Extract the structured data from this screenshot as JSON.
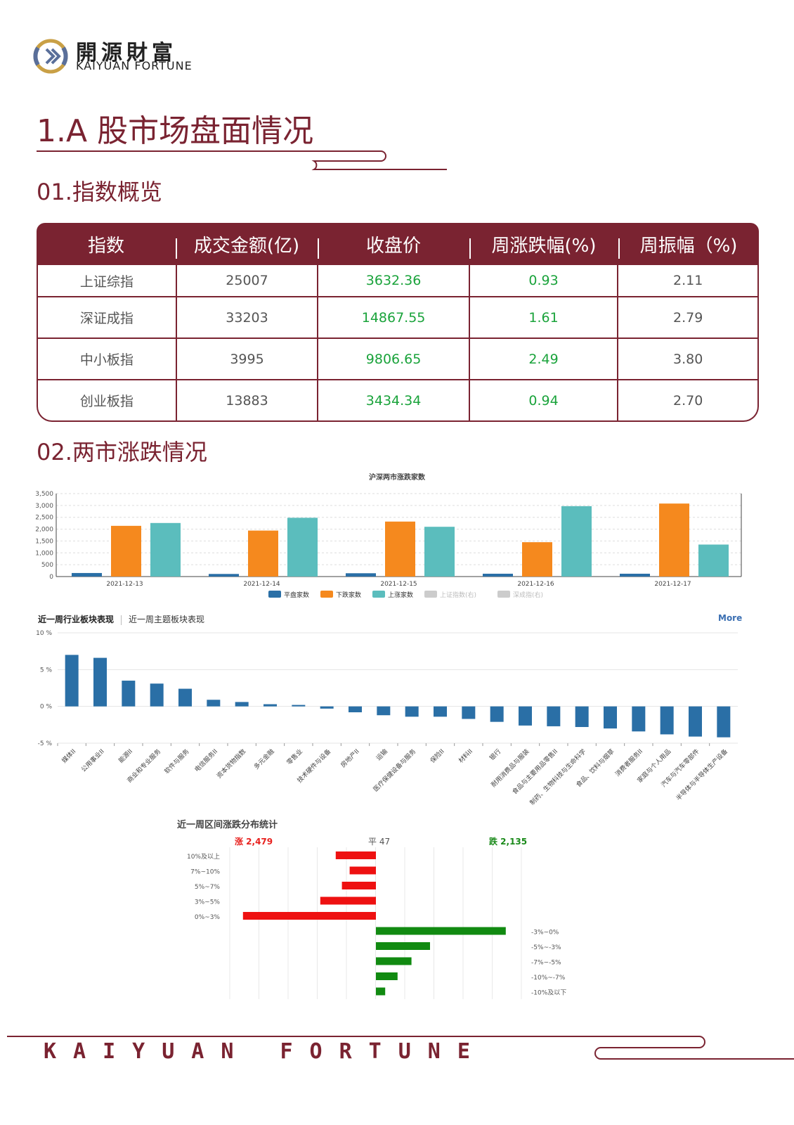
{
  "brand": {
    "cn": "開源財富",
    "en": "KAIYUAN FORTUNE",
    "footer": "KAIYUAN FORTUNE"
  },
  "section1": {
    "title": "1.A 股市场盘面情况"
  },
  "index_overview": {
    "title": "01.指数概览",
    "columns": [
      "指数",
      "成交金额(亿)",
      "收盘价",
      "周涨跌幅(%)",
      "周振幅（%)"
    ],
    "rows": [
      [
        "上证综指",
        "25007",
        "3632.36",
        "0.93",
        "2.11"
      ],
      [
        "深证成指",
        "33203",
        "14867.55",
        "1.61",
        "2.79"
      ],
      [
        "中小板指",
        "3995",
        "9806.65",
        "2.49",
        "3.80"
      ],
      [
        "创业板指",
        "13883",
        "3434.34",
        "0.94",
        "2.70"
      ]
    ],
    "colors": {
      "header": "#7a2331",
      "positive": "#1aa33b"
    }
  },
  "market_updown": {
    "title": "02.两市涨跌情况"
  },
  "chart_data": [
    {
      "type": "bar",
      "title": "沪深两市涨跌家数",
      "categories": [
        "2021-12-13",
        "2021-12-14",
        "2021-12-15",
        "2021-12-16",
        "2021-12-17"
      ],
      "ylim": [
        0,
        3500
      ],
      "yticks": [
        "3,500",
        "3,000",
        "2,500",
        "2,000",
        "1,500",
        "1,000",
        "500",
        "0"
      ],
      "series": [
        {
          "name": "平盘家数",
          "color": "#2a6fa6",
          "values": [
            150,
            110,
            140,
            120,
            120
          ]
        },
        {
          "name": "下跌家数",
          "color": "#f5891e",
          "values": [
            2140,
            1940,
            2320,
            1450,
            3080
          ]
        },
        {
          "name": "上涨家数",
          "color": "#5bbdbd",
          "values": [
            2260,
            2480,
            2100,
            2970,
            1350
          ]
        }
      ],
      "legend_extra": [
        "上证指数(右)",
        "深成指(右)"
      ],
      "legend": "bottom"
    },
    {
      "type": "bar",
      "title": "近一周行业板块表现",
      "tabs": [
        "近一周行业板块表现",
        "近一周主题板块表现"
      ],
      "more": "More",
      "ylim": [
        -5,
        10
      ],
      "yticks": [
        "10 %",
        "5 %",
        "0 %",
        "-5 %"
      ],
      "color": "#2a6fa6",
      "categories": [
        "媒体II",
        "公用事业II",
        "能源II",
        "商业和专业服务",
        "软件与服务",
        "电信服务II",
        "资本货物指数",
        "多元金融",
        "零售业",
        "技术硬件与设备",
        "房地产II",
        "运输",
        "医疗保健设备与服务",
        "保险II",
        "材料II",
        "银行",
        "耐用消费品与服装",
        "食品与主要用品零售II",
        "制药、生物科技与生命科学",
        "食品、饮料与烟草",
        "消费者服务II",
        "家庭与个人用品",
        "汽车与汽车零部件",
        "半导体与半导体生产设备"
      ],
      "values": [
        7.0,
        6.6,
        3.5,
        3.1,
        2.4,
        0.9,
        0.6,
        0.3,
        0.2,
        -0.3,
        -0.8,
        -1.2,
        -1.4,
        -1.4,
        -1.7,
        -2.1,
        -2.6,
        -2.7,
        -2.8,
        -3.0,
        -3.4,
        -3.8,
        -4.1,
        -4.2
      ]
    },
    {
      "type": "bar",
      "title": "近一周区间涨跌分布统计",
      "summary": {
        "up": "涨 2,479",
        "flat": "平 47",
        "down": "跌 2,135"
      },
      "up_categories": [
        "10%及以上",
        "7%~10%",
        "5%~7%",
        "3%~5%",
        "0%~3%"
      ],
      "up_values": [
        130,
        85,
        110,
        180,
        430
      ],
      "down_categories": [
        "-3%~0%",
        "-5%~-3%",
        "-7%~-5%",
        "-10%~-7%",
        "-10%及以下"
      ],
      "down_values": [
        420,
        175,
        115,
        70,
        30
      ],
      "colors": {
        "up": "#ee1111",
        "down": "#118a11"
      }
    }
  ]
}
